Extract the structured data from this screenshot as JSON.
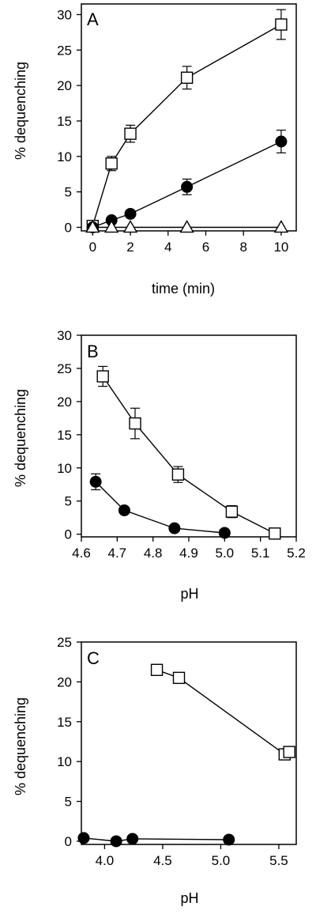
{
  "colors": {
    "ink": "#000000",
    "paper": "#ffffff"
  },
  "chart_data": [
    {
      "panel": "A",
      "type": "scatter",
      "xlabel": "time (min)",
      "ylabel": "% dequenching",
      "xlim": [
        -0.6,
        10.8
      ],
      "ylim": [
        -0.5,
        31.5
      ],
      "xticks": [
        0,
        2,
        4,
        6,
        8,
        10
      ],
      "xtick_labels": [
        "0",
        "2",
        "4",
        "6",
        "8",
        "10"
      ],
      "yticks": [
        0,
        5,
        10,
        15,
        20,
        25,
        30
      ],
      "ytick_labels": [
        "0",
        "5",
        "10",
        "15",
        "20",
        "25",
        "30"
      ],
      "grid": false,
      "series": [
        {
          "marker": "open-square",
          "x": [
            0,
            1,
            2,
            5,
            10
          ],
          "y": [
            0.2,
            9.0,
            13.2,
            21.1,
            28.6
          ],
          "err": [
            0,
            1.0,
            1.2,
            1.6,
            2.1
          ]
        },
        {
          "marker": "filled-circle",
          "x": [
            0,
            1,
            2,
            5,
            10
          ],
          "y": [
            0.0,
            1.0,
            1.9,
            5.7,
            12.1
          ],
          "err": [
            0,
            0,
            0,
            1.1,
            1.6
          ]
        },
        {
          "marker": "open-triangle",
          "x": [
            0,
            1,
            2,
            5,
            10
          ],
          "y": [
            0.0,
            0.0,
            0.0,
            0.0,
            0.0
          ],
          "err": [
            0,
            0,
            0,
            0,
            0
          ]
        }
      ]
    },
    {
      "panel": "B",
      "type": "scatter",
      "xlabel": "pH",
      "ylabel": "% dequenching",
      "xlim": [
        4.6,
        5.2
      ],
      "ylim": [
        -0.4,
        30
      ],
      "xticks": [
        4.6,
        4.7,
        4.8,
        4.9,
        5.0,
        5.1,
        5.2
      ],
      "xtick_labels": [
        "4.6",
        "4.7",
        "4.8",
        "4.9",
        "5.0",
        "5.1",
        "5.2"
      ],
      "yticks": [
        0,
        5,
        10,
        15,
        20,
        25,
        30
      ],
      "ytick_labels": [
        "0",
        "5",
        "10",
        "15",
        "20",
        "25",
        "30"
      ],
      "grid": false,
      "series": [
        {
          "marker": "open-square",
          "x": [
            4.66,
            4.75,
            4.87,
            5.02,
            5.14
          ],
          "y": [
            23.8,
            16.7,
            9.0,
            3.4,
            0.1
          ],
          "err": [
            1.5,
            2.3,
            1.2,
            0.9,
            0
          ]
        },
        {
          "marker": "filled-circle",
          "x": [
            4.64,
            4.72,
            4.86,
            5.0
          ],
          "y": [
            7.9,
            3.6,
            0.9,
            0.2
          ],
          "err": [
            1.2,
            0,
            0,
            0
          ]
        }
      ]
    },
    {
      "panel": "C",
      "type": "scatter",
      "xlabel": "pH",
      "ylabel": "% dequenching",
      "xlim": [
        3.8,
        5.65
      ],
      "ylim": [
        -0.4,
        25
      ],
      "xticks": [
        4.0,
        4.5,
        5.0,
        5.5
      ],
      "xtick_labels": [
        "4.0",
        "4.5",
        "5.0",
        "5.5"
      ],
      "yticks": [
        0,
        5,
        10,
        15,
        20,
        25
      ],
      "ytick_labels": [
        "0",
        "5",
        "10",
        "15",
        "20",
        "25"
      ],
      "grid": false,
      "series": [
        {
          "marker": "open-square",
          "x": [
            4.45,
            4.64,
            5.55,
            5.59
          ],
          "y": [
            21.5,
            20.5,
            10.9,
            11.2
          ],
          "err": [
            0,
            0,
            0,
            0
          ]
        },
        {
          "marker": "filled-circle",
          "x": [
            3.82,
            4.1,
            4.24,
            5.07
          ],
          "y": [
            0.4,
            0.0,
            0.3,
            0.2
          ],
          "err": [
            0,
            0,
            0,
            0
          ]
        }
      ]
    }
  ]
}
